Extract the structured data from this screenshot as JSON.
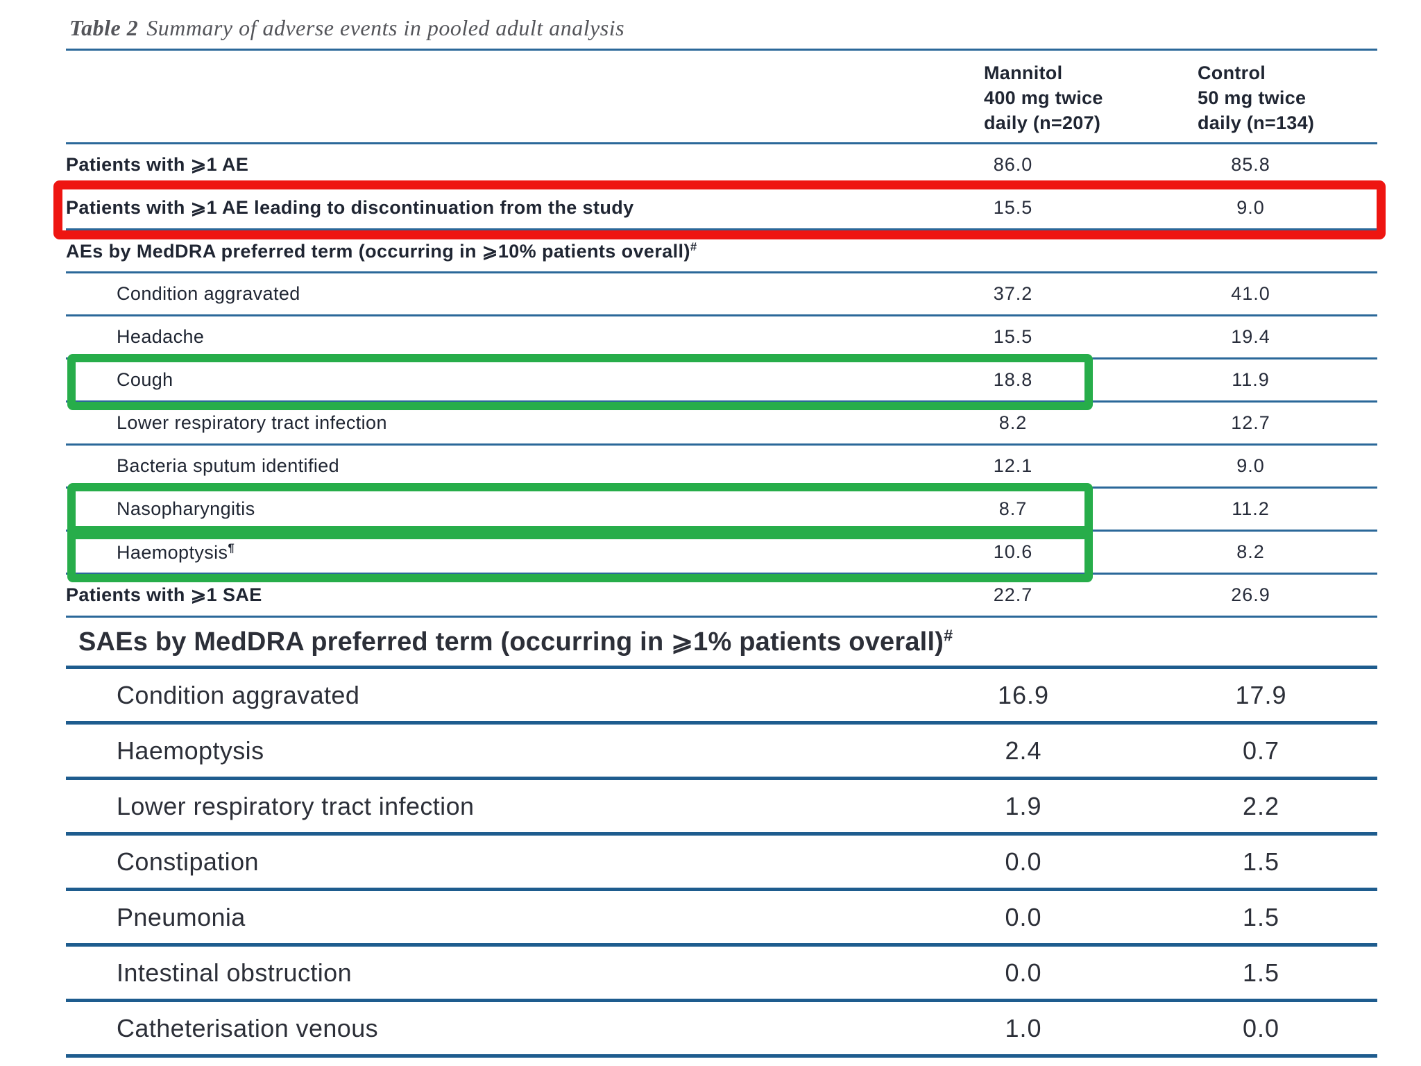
{
  "title": {
    "label": "Table 2",
    "text": "Summary of adverse events in pooled adult analysis"
  },
  "columns": {
    "col1": [
      "Mannitol",
      "400 mg twice",
      "daily (n=207)"
    ],
    "col2": [
      "Control",
      "50 mg twice",
      "daily (n=134)"
    ]
  },
  "annotation_colors": {
    "red_box": "#ee1511",
    "green_box": "#27ad4a",
    "rule_blue": "#2b6899"
  },
  "sections": [
    {
      "name": "adverse-events",
      "size": "small",
      "rows": [
        {
          "label": "Patients with ⩾1 AE",
          "bold": true,
          "v1": "86.0",
          "v2": "85.8"
        },
        {
          "label": "Patients with ⩾1 AE leading to discontinuation from the study",
          "bold": true,
          "v1": "15.5",
          "v2": "9.0",
          "highlight": "red"
        },
        {
          "label": "AEs by MedDRA preferred term (occurring in ⩾10% patients overall)",
          "sup": "#",
          "header": true
        },
        {
          "label": "Condition aggravated",
          "indent": true,
          "v1": "37.2",
          "v2": "41.0"
        },
        {
          "label": "Headache",
          "indent": true,
          "v1": "15.5",
          "v2": "19.4"
        },
        {
          "label": "Cough",
          "indent": true,
          "v1": "18.8",
          "v2": "11.9",
          "highlight": "green"
        },
        {
          "label": "Lower respiratory tract infection",
          "indent": true,
          "v1": "8.2",
          "v2": "12.7"
        },
        {
          "label": "Bacteria sputum identified",
          "indent": true,
          "v1": "12.1",
          "v2": "9.0"
        },
        {
          "label": "Nasopharyngitis",
          "indent": true,
          "v1": "8.7",
          "v2": "11.2",
          "highlight": "green"
        },
        {
          "label": "Haemoptysis",
          "sup": "¶",
          "indent": true,
          "v1": "10.6",
          "v2": "8.2",
          "highlight": "green"
        },
        {
          "label": "Patients with ⩾1 SAE",
          "bold": true,
          "v1": "22.7",
          "v2": "26.9"
        }
      ]
    },
    {
      "name": "serious-adverse-events",
      "size": "large",
      "rows": [
        {
          "label": "SAEs by MedDRA preferred term (occurring in ⩾1% patients overall)",
          "sup": "#",
          "header": true
        },
        {
          "label": "Condition aggravated",
          "indent": true,
          "v1": "16.9",
          "v2": "17.9"
        },
        {
          "label": "Haemoptysis",
          "indent": true,
          "v1": "2.4",
          "v2": "0.7"
        },
        {
          "label": "Lower respiratory tract infection",
          "indent": true,
          "v1": "1.9",
          "v2": "2.2"
        },
        {
          "label": "Constipation",
          "indent": true,
          "v1": "0.0",
          "v2": "1.5"
        },
        {
          "label": "Pneumonia",
          "indent": true,
          "v1": "0.0",
          "v2": "1.5"
        },
        {
          "label": "Intestinal obstruction",
          "indent": true,
          "v1": "0.0",
          "v2": "1.5"
        },
        {
          "label": "Catheterisation venous",
          "indent": true,
          "v1": "1.0",
          "v2": "0.0"
        }
      ]
    }
  ]
}
